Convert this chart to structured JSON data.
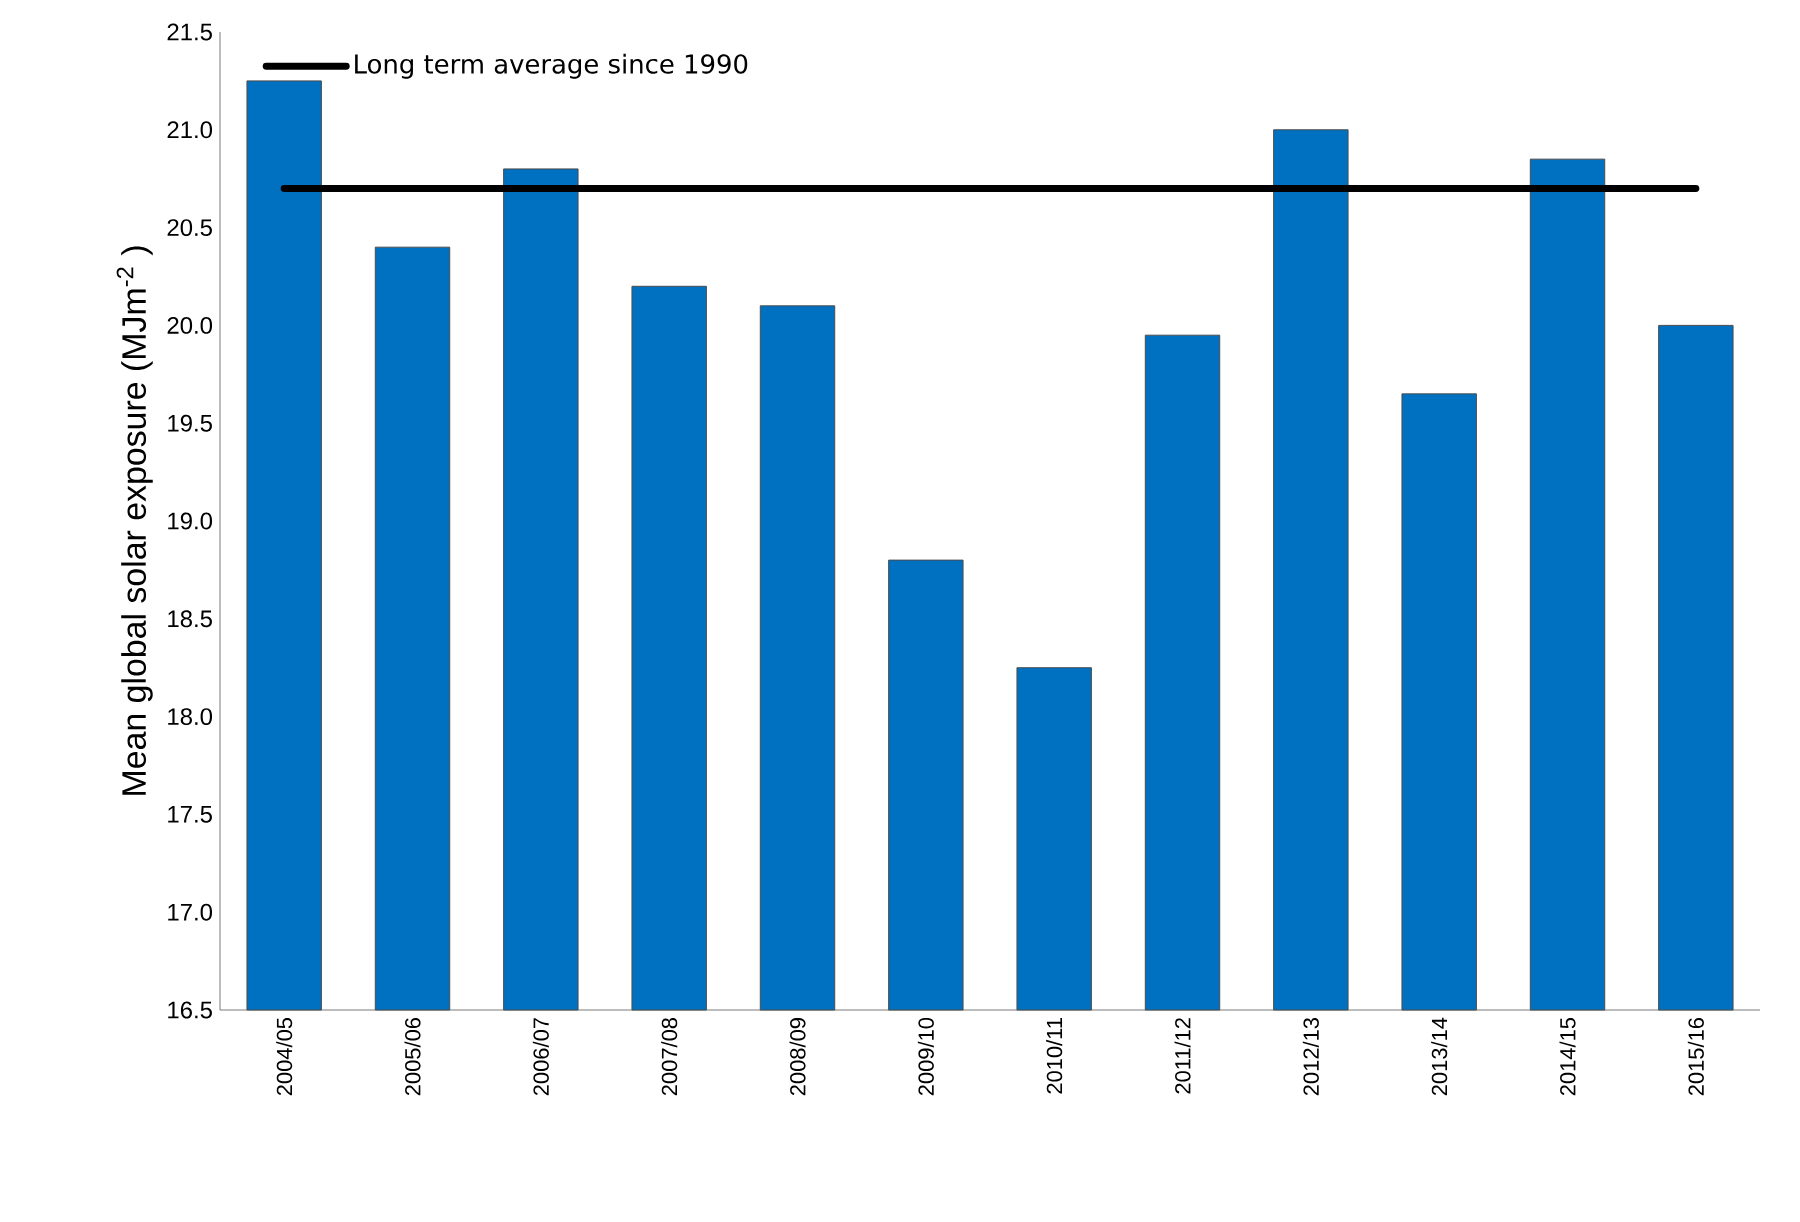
{
  "chart_data": {
    "type": "bar",
    "ylabel": "Mean global solar exposure (MJm$^{-2}$ )",
    "categories": [
      "2004/05",
      "2005/06",
      "2006/07",
      "2007/08",
      "2008/09",
      "2009/10",
      "2010/11",
      "2011/12",
      "2012/13",
      "2013/14",
      "2014/15",
      "2015/16"
    ],
    "values": [
      21.25,
      20.4,
      20.8,
      20.2,
      20.1,
      18.8,
      18.25,
      19.95,
      21.0,
      19.65,
      20.85,
      20.0
    ],
    "color": "#0070c0",
    "ylim": [
      16.5,
      21.5
    ],
    "yticks": [
      16.5,
      {
        "value": 17,
        "label": "17.0"
      },
      17.5,
      {
        "value": 18,
        "label": "18.0"
      },
      18.5,
      {
        "value": 19,
        "label": "19.0"
      },
      19.5,
      {
        "value": 20,
        "label": "20.0"
      },
      20.5,
      {
        "value": 21,
        "label": "21.0"
      },
      21.5
    ],
    "ref_lines": [
      {
        "axis": "y",
        "value": 20.7,
        "label": "Long term average since 1990",
        "color": "#000000"
      }
    ],
    "grid": false,
    "legend": "top left"
  }
}
